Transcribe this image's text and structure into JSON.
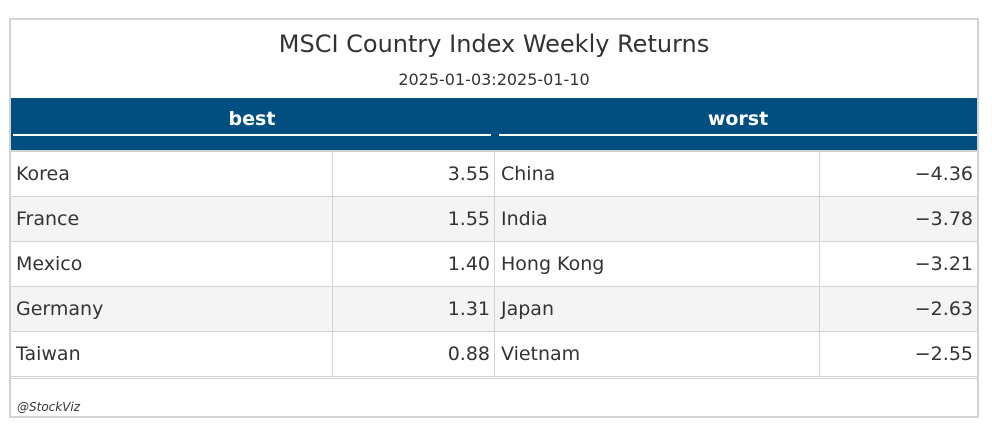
{
  "chart_data": {
    "type": "table",
    "title": "MSCI Country Index Weekly Returns",
    "subtitle": "2025-01-03:2025-01-10",
    "column_groups": [
      "best",
      "worst"
    ],
    "rows": [
      {
        "best_country": "Korea",
        "best_value": "3.55",
        "worst_country": "China",
        "worst_value": "−4.36"
      },
      {
        "best_country": "France",
        "best_value": "1.55",
        "worst_country": "India",
        "worst_value": "−3.78"
      },
      {
        "best_country": "Mexico",
        "best_value": "1.40",
        "worst_country": "Hong Kong",
        "worst_value": "−3.21"
      },
      {
        "best_country": "Germany",
        "best_value": "1.31",
        "worst_country": "Japan",
        "worst_value": "−2.63"
      },
      {
        "best_country": "Taiwan",
        "best_value": "0.88",
        "worst_country": "Vietnam",
        "worst_value": "−2.55"
      }
    ],
    "source_note": "@StockViz",
    "colors": {
      "header": "#004f80",
      "stripe": "#f4f4f4",
      "border": "#d3d3d3"
    }
  }
}
